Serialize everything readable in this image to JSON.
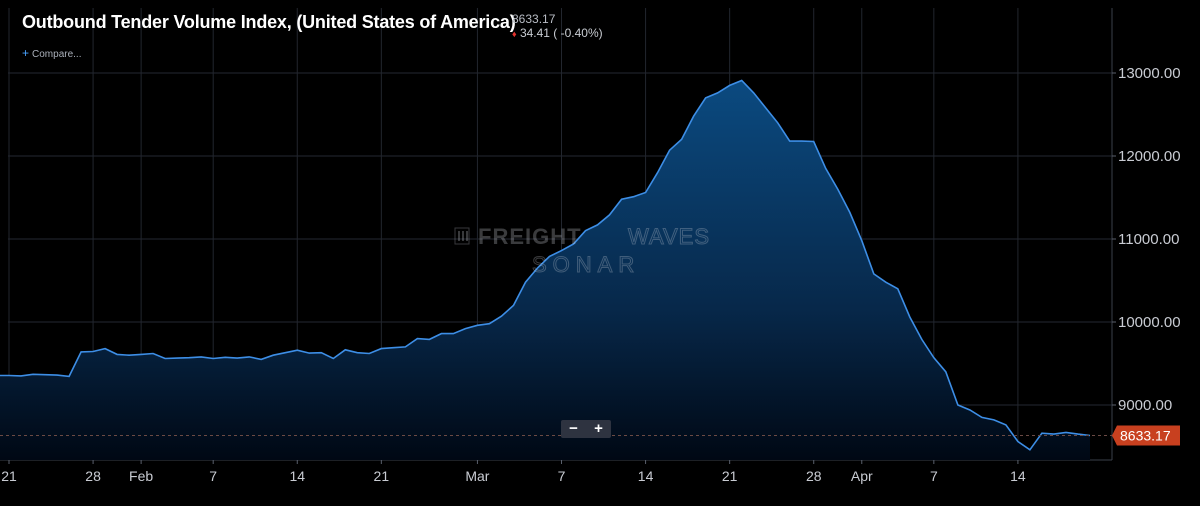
{
  "header": {
    "title": "Outbound Tender Volume Index, (United States of America)",
    "value": "8633.17",
    "change": "34.41 ( -0.40%)",
    "compare_label": "Compare..."
  },
  "watermark": {
    "line1a": "FREIGHT",
    "line1b": "WAVES",
    "line2": "SONAR"
  },
  "zoom": {
    "minus": "−",
    "plus": "+"
  },
  "colors": {
    "line": "#3d8ee6",
    "fill_top": "#0b4a80",
    "bg": "#000000",
    "grid": "#262a33",
    "last_value_badge": "#c8401f",
    "change_down": "#e3332f"
  },
  "chart_data": {
    "type": "area",
    "title": "Outbound Tender Volume Index, (United States of America)",
    "y_axis_position": "right",
    "y_ticks": [
      9000,
      10000,
      11000,
      12000,
      13000
    ],
    "y_tick_labels": [
      "9000.00",
      "10000.00",
      "11000.00",
      "12000.00",
      "13000.00"
    ],
    "ylim": [
      8350,
      13700
    ],
    "x_tick_labels": [
      "21",
      "28",
      "Feb",
      "7",
      "14",
      "21",
      "Mar",
      "7",
      "14",
      "21",
      "28",
      "Apr",
      "7",
      "14"
    ],
    "x_tick_day_index": [
      0,
      7,
      11,
      17,
      24,
      31,
      39,
      46,
      53,
      60,
      67,
      71,
      77,
      84
    ],
    "x_end_day_index": 92,
    "last_value": 8633.17,
    "last_value_label": "8633.17",
    "grid": true,
    "series": [
      {
        "name": "",
        "points": [
          [
            -1,
            9355
          ],
          [
            0,
            9355
          ],
          [
            1,
            9350
          ],
          [
            2,
            9370
          ],
          [
            3,
            9365
          ],
          [
            4,
            9360
          ],
          [
            5,
            9345
          ],
          [
            6,
            9640
          ],
          [
            7,
            9645
          ],
          [
            8,
            9680
          ],
          [
            9,
            9610
          ],
          [
            10,
            9600
          ],
          [
            11,
            9610
          ],
          [
            12,
            9620
          ],
          [
            13,
            9560
          ],
          [
            14,
            9565
          ],
          [
            15,
            9570
          ],
          [
            16,
            9580
          ],
          [
            17,
            9560
          ],
          [
            18,
            9575
          ],
          [
            19,
            9565
          ],
          [
            20,
            9580
          ],
          [
            21,
            9550
          ],
          [
            22,
            9600
          ],
          [
            23,
            9630
          ],
          [
            24,
            9660
          ],
          [
            25,
            9625
          ],
          [
            26,
            9630
          ],
          [
            27,
            9560
          ],
          [
            28,
            9665
          ],
          [
            29,
            9630
          ],
          [
            30,
            9620
          ],
          [
            31,
            9680
          ],
          [
            32,
            9690
          ],
          [
            33,
            9700
          ],
          [
            34,
            9800
          ],
          [
            35,
            9790
          ],
          [
            36,
            9860
          ],
          [
            37,
            9860
          ],
          [
            38,
            9920
          ],
          [
            39,
            9960
          ],
          [
            40,
            9980
          ],
          [
            41,
            10070
          ],
          [
            42,
            10200
          ],
          [
            43,
            10480
          ],
          [
            44,
            10650
          ],
          [
            45,
            10790
          ],
          [
            46,
            10860
          ],
          [
            47,
            10940
          ],
          [
            48,
            11100
          ],
          [
            49,
            11170
          ],
          [
            50,
            11290
          ],
          [
            51,
            11480
          ],
          [
            52,
            11510
          ],
          [
            53,
            11560
          ],
          [
            54,
            11800
          ],
          [
            55,
            12070
          ],
          [
            56,
            12200
          ],
          [
            57,
            12480
          ],
          [
            58,
            12700
          ],
          [
            59,
            12760
          ],
          [
            60,
            12850
          ],
          [
            61,
            12910
          ],
          [
            62,
            12760
          ],
          [
            63,
            12580
          ],
          [
            64,
            12400
          ],
          [
            65,
            12180
          ],
          [
            66,
            12180
          ],
          [
            67,
            12175
          ],
          [
            68,
            11850
          ],
          [
            69,
            11600
          ],
          [
            70,
            11320
          ],
          [
            71,
            10980
          ],
          [
            72,
            10580
          ],
          [
            73,
            10480
          ],
          [
            74,
            10400
          ],
          [
            75,
            10060
          ],
          [
            76,
            9790
          ],
          [
            77,
            9570
          ],
          [
            78,
            9400
          ],
          [
            79,
            9000
          ],
          [
            80,
            8940
          ],
          [
            81,
            8850
          ],
          [
            82,
            8820
          ],
          [
            83,
            8760
          ],
          [
            84,
            8560
          ],
          [
            85,
            8460
          ],
          [
            86,
            8660
          ],
          [
            87,
            8650
          ],
          [
            88,
            8670
          ],
          [
            89,
            8650
          ],
          [
            90,
            8633
          ]
        ]
      }
    ]
  }
}
